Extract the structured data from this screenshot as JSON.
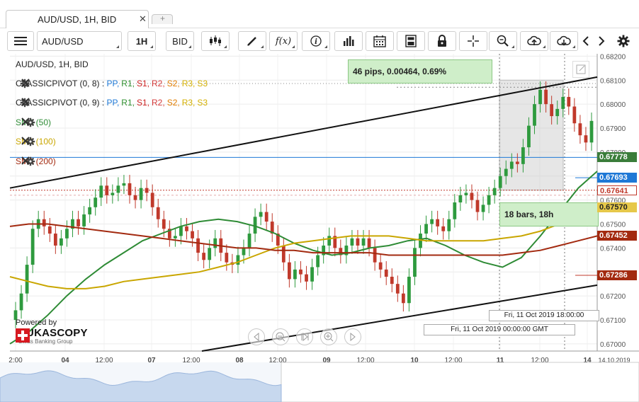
{
  "tabs": {
    "active_label": "AUD/USD, 1H, BID",
    "close_glyph": "✕",
    "add_glyph": "+"
  },
  "toolbar": {
    "instrument": "AUD/USD",
    "period": "1H",
    "side": "BID",
    "fx_label": "f(x)",
    "icons": [
      "menu-icon",
      "candle-type-icon",
      "drawing-pen-icon",
      "indicators-icon",
      "info-icon",
      "volume-bars-icon",
      "calendar-icon",
      "calculator-icon",
      "lock-icon",
      "crosshair-icon",
      "zoom-icon",
      "upload-cloud-icon",
      "download-cloud-icon",
      "scroll-left-icon",
      "scroll-right-icon",
      "settings-icon"
    ]
  },
  "legend": {
    "title": "AUD/USD, 1H, BID",
    "pivots": [
      {
        "name": "CLASSICPIVOT (0, 8)",
        "sep": " : ",
        "levels": [
          "PP,",
          "R1,",
          "S1,",
          "R2,",
          "S2,",
          "R3,",
          "S3"
        ]
      },
      {
        "name": "CLASSICPIVOT (0, 9)",
        "sep": " : ",
        "levels": [
          "PP,",
          "R1,",
          "S1,",
          "R2,",
          "S2,",
          "R3,",
          "S3"
        ]
      }
    ],
    "smas": [
      "SMA (50)",
      "SMA (100)",
      "SMA (200)"
    ]
  },
  "annotations": {
    "measure": "46 pips, 0.00464, 0.69%",
    "bars": "18 bars, 18h",
    "date_top": "Fri, 11 Oct 2019 18:00:00",
    "date_bottom": "Fri, 11 Oct 2019 00:00:00 GMT"
  },
  "branding": {
    "powered_by": "Powered by",
    "name": "DUKASCOPY",
    "tagline": "Swiss Banking Group"
  },
  "colors": {
    "bull": "#2e9a3e",
    "bear": "#c0392b",
    "sma50": "#2e8b35",
    "sma100": "#c9a600",
    "sma200": "#a32a10",
    "pp": "#1e78d6",
    "r1": "#2f8f2f",
    "s1": "#cc2020",
    "r2": "#d43a3a",
    "s2": "#e07c00",
    "r3": "#d4b000",
    "s3": "#d4b000",
    "current_price": "#3a7d3a",
    "blue_line": "#1e78d6",
    "red_line": "#c0392b"
  },
  "chart_data": {
    "type": "candlestick",
    "symbol": "AUD/USD",
    "period": "1H",
    "side": "BID",
    "ylim": [
      0.6697,
      0.6821
    ],
    "y_ticks": [
      0.67,
      0.671,
      0.672,
      0.673,
      0.674,
      0.675,
      0.676,
      0.677,
      0.678,
      0.679,
      0.68,
      0.681,
      0.682
    ],
    "y_tick_labels": [
      "0.67000",
      "0.67100",
      "0.67200",
      "",
      "0.67400",
      "0.67500",
      "0.67600",
      "",
      "0.67800",
      "0.67900",
      "0.68000",
      "0.68100",
      "0.68200"
    ],
    "x_tick_labels": [
      "2:00",
      "04",
      "12:00",
      "07",
      "12:00",
      "08",
      "12:00",
      "09",
      "12:00",
      "10",
      "12:00",
      "11",
      "12:00",
      "14",
      "14.10.2019"
    ],
    "price_labels": [
      {
        "value": "0.67778",
        "color": "#3a7d3a",
        "text_color": "#ffffff"
      },
      {
        "value": "0.67693",
        "color": "#1e78d6",
        "text_color": "#ffffff"
      },
      {
        "value": "0.67641",
        "color": "#ffffff",
        "text_color": "#c0392b"
      },
      {
        "value": "0.67570",
        "color": "#e6c84a",
        "text_color": "#222222"
      },
      {
        "value": "0.67452",
        "color": "#a32a10",
        "text_color": "#ffffff"
      },
      {
        "value": "0.67286",
        "color": "#a32a10",
        "text_color": "#ffffff"
      }
    ],
    "close_series": [
      0.6714,
      0.6721,
      0.6733,
      0.6748,
      0.6752,
      0.6749,
      0.6746,
      0.6741,
      0.6744,
      0.6748,
      0.6752,
      0.6749,
      0.6754,
      0.6757,
      0.6761,
      0.6766,
      0.6762,
      0.6763,
      0.6766,
      0.6767,
      0.6762,
      0.676,
      0.6765,
      0.6763,
      0.6757,
      0.6752,
      0.6748,
      0.6744,
      0.6745,
      0.6749,
      0.6747,
      0.6744,
      0.6738,
      0.6735,
      0.674,
      0.6744,
      0.6738,
      0.6734,
      0.6733,
      0.6737,
      0.674,
      0.6746,
      0.6753,
      0.6755,
      0.6751,
      0.6746,
      0.6741,
      0.6734,
      0.6727,
      0.6731,
      0.6729,
      0.6726,
      0.6732,
      0.6737,
      0.6741,
      0.6745,
      0.674,
      0.6737,
      0.6741,
      0.6744,
      0.6741,
      0.6744,
      0.674,
      0.6734,
      0.6731,
      0.6728,
      0.6725,
      0.6721,
      0.6717,
      0.6728,
      0.674,
      0.6746,
      0.675,
      0.6752,
      0.6749,
      0.6747,
      0.6752,
      0.6759,
      0.6762,
      0.6763,
      0.676,
      0.6755,
      0.6758,
      0.6762,
      0.6765,
      0.677,
      0.6773,
      0.6776,
      0.6775,
      0.6782,
      0.6791,
      0.68,
      0.6806,
      0.68,
      0.6795,
      0.6798,
      0.6803,
      0.6799,
      0.6792,
      0.6787,
      0.6784,
      0.6793
    ],
    "series": [
      {
        "name": "SMA (50)",
        "values": [
          0.67,
          0.6705,
          0.6712,
          0.672,
          0.6727,
          0.6733,
          0.6738,
          0.6743,
          0.6746,
          0.6749,
          0.6751,
          0.6752,
          0.6751,
          0.6749,
          0.6746,
          0.6742,
          0.6739,
          0.6737,
          0.6738,
          0.674,
          0.6741,
          0.6743,
          0.6744,
          0.6741,
          0.6737,
          0.6734,
          0.6732,
          0.6736,
          0.6745,
          0.6755,
          0.6765,
          0.6772
        ]
      },
      {
        "name": "SMA (100)",
        "values": [
          0.6728,
          0.6726,
          0.6724,
          0.6723,
          0.6723,
          0.6724,
          0.6726,
          0.6727,
          0.6728,
          0.6729,
          0.673,
          0.6732,
          0.6734,
          0.6737,
          0.674,
          0.6742,
          0.6743,
          0.6744,
          0.6745,
          0.6745,
          0.6745,
          0.6744,
          0.6743,
          0.6743,
          0.6743,
          0.6743,
          0.6744,
          0.6745,
          0.6747,
          0.675,
          0.6754,
          0.6757
        ]
      },
      {
        "name": "SMA (200)",
        "values": [
          0.6749,
          0.675,
          0.675,
          0.6749,
          0.6748,
          0.6747,
          0.6746,
          0.6745,
          0.6744,
          0.6743,
          0.6742,
          0.6741,
          0.674,
          0.674,
          0.6739,
          0.6739,
          0.6738,
          0.6738,
          0.6738,
          0.6738,
          0.6737,
          0.6737,
          0.6737,
          0.6737,
          0.6737,
          0.6737,
          0.6737,
          0.6738,
          0.6739,
          0.6741,
          0.6743,
          0.6745
        ]
      }
    ]
  }
}
